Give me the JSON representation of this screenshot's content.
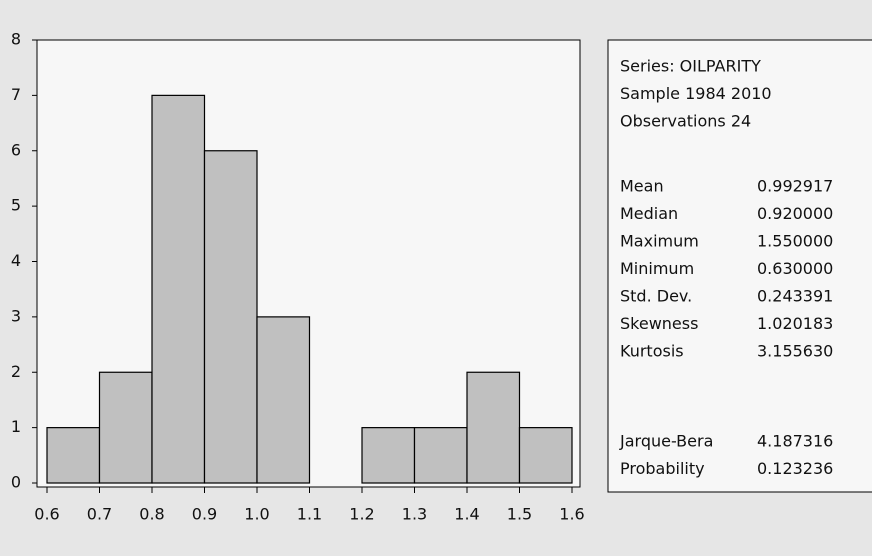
{
  "chart_data": {
    "type": "histogram",
    "bins": [
      0.6,
      0.7,
      0.8,
      0.9,
      1.0,
      1.1,
      1.2,
      1.3,
      1.4,
      1.5,
      1.6
    ],
    "counts": [
      1,
      2,
      7,
      6,
      3,
      0,
      1,
      1,
      2,
      1
    ],
    "color": "#c0c0c0",
    "xlim": [
      0.6,
      1.6
    ],
    "xticks": [
      0.6,
      0.7,
      0.8,
      0.9,
      {
        "value": 1.0,
        "label": "1.0"
      },
      1.1,
      1.2,
      1.3,
      1.4,
      1.5,
      1.6
    ],
    "ylim": [
      0,
      8
    ],
    "yticks": [
      0,
      1,
      2,
      3,
      4,
      5,
      6,
      7,
      8
    ],
    "grid": false,
    "stats": {
      "header": [
        "Series: OILPARITY",
        "Sample 1984 2010",
        "Observations 24"
      ],
      "rows": [
        [
          "Mean",
          "0.992917"
        ],
        [
          "Median",
          "0.920000"
        ],
        [
          "Maximum",
          "1.550000"
        ],
        [
          "Minimum",
          "0.630000"
        ],
        [
          "Std. Dev.",
          "0.243391"
        ],
        [
          "Skewness",
          "1.020183"
        ],
        [
          "Kurtosis",
          "3.155630"
        ]
      ],
      "tests": [
        [
          "Jarque-Bera",
          "4.187316"
        ],
        [
          "Probability",
          "0.123236"
        ]
      ]
    }
  }
}
